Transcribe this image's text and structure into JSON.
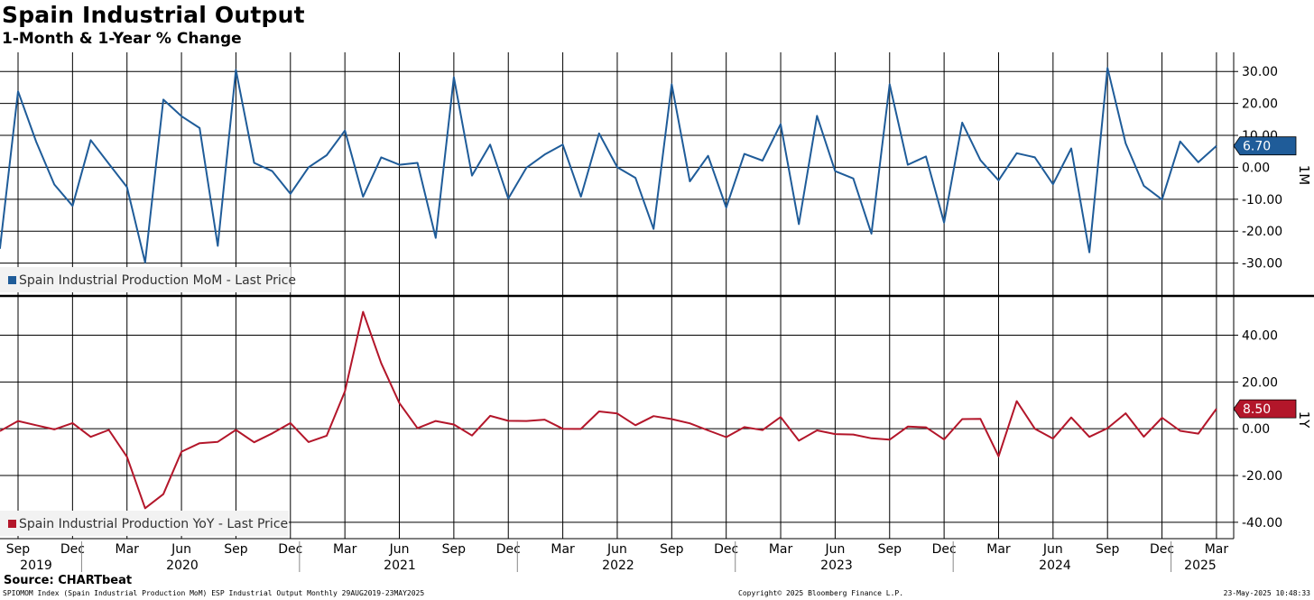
{
  "header": {
    "title": "Spain Industrial Output",
    "subtitle": "1-Month & 1-Year % Change"
  },
  "footer": {
    "source": "Source: CHARTbeat",
    "left": "SPIOMOM Index (Spain Industrial Production MoM) ESP Industrial Output  Monthly 29AUG2019-23MAY2025",
    "center": "Copyright© 2025 Bloomberg Finance L.P.",
    "right": "23-May-2025 10:48:33"
  },
  "x_axis": {
    "month_labels": [
      "Sep",
      "Dec",
      "Mar",
      "Jun",
      "Sep",
      "Dec",
      "Mar",
      "Jun",
      "Sep",
      "Dec",
      "Mar",
      "Jun",
      "Sep",
      "Dec",
      "Mar",
      "Jun",
      "Sep",
      "Dec",
      "Mar",
      "Jun",
      "Sep",
      "Dec",
      "Mar"
    ],
    "year_labels": [
      "2019",
      "2020",
      "2021",
      "2022",
      "2023",
      "2024",
      "2025"
    ]
  },
  "chart_data": [
    {
      "type": "line",
      "panel": "top",
      "side_label": "1M",
      "legend": "Spain Industrial Production MoM - Last Price",
      "color": "#1f5c99",
      "last_value_label": "6.70",
      "ylim": [
        -40,
        36
      ],
      "y_ticks": [
        30,
        20,
        10,
        0,
        -10,
        -20,
        -30
      ],
      "y_tick_labels": [
        "30.00",
        "20.00",
        "10.00",
        "0.00",
        "-10.00",
        "-20.00",
        "-30.00"
      ],
      "x_start": "2019-08",
      "x_end": "2025-03",
      "values": [
        -25.5,
        23.8,
        8,
        -5.4,
        -12.1,
        8.5,
        1.1,
        -6.2,
        -29.8,
        21.2,
        16,
        12.3,
        -24.6,
        30.5,
        1.4,
        -1.2,
        -8.3,
        0,
        3.8,
        11.5,
        -9.2,
        3.1,
        0.8,
        1.4,
        -22.1,
        28.2,
        -2.6,
        7.1,
        -9.8,
        -0.1,
        4,
        7.1,
        -9.2,
        10.6,
        0,
        -3.3,
        -19.3,
        26,
        -4.4,
        3.6,
        -12.6,
        4.2,
        2.1,
        13.5,
        -17.8,
        16.1,
        -1.2,
        -3.5,
        -20.8,
        26,
        0.8,
        3.4,
        -17.3,
        14,
        2.2,
        -4.1,
        4.4,
        3.1,
        -5.3,
        5.9,
        -26.6,
        31.1,
        7.5,
        -5.8,
        -10.1,
        8.1,
        1.6,
        6.7
      ]
    },
    {
      "type": "line",
      "panel": "bottom",
      "side_label": "1Y",
      "legend": "Spain Industrial Production YoY - Last Price",
      "color": "#b3162a",
      "last_value_label": "8.50",
      "ylim": [
        -47,
        56
      ],
      "y_ticks": [
        40,
        20,
        0,
        -20,
        -40
      ],
      "y_tick_labels": [
        "40.00",
        "20.00",
        "0.00",
        "-20.00",
        "-40.00"
      ],
      "x_start": "2019-08",
      "x_end": "2025-03",
      "values": [
        -1,
        3.3,
        1.5,
        -0.3,
        2.4,
        -3.5,
        -0.5,
        -12,
        -34,
        -28,
        -9.8,
        -6.2,
        -5.6,
        -0.5,
        -5.8,
        -2,
        2.4,
        -5.7,
        -3,
        16,
        50,
        28,
        11,
        0.2,
        3.3,
        1.8,
        -2.9,
        5.5,
        3.4,
        3.3,
        3.9,
        0,
        -0.1,
        7.4,
        6.5,
        1.5,
        5.4,
        4.1,
        2.3,
        -0.7,
        -3.6,
        0.7,
        -0.6,
        5,
        -5.1,
        -0.7,
        -2.3,
        -2.5,
        -4.1,
        -4.7,
        0.9,
        0.6,
        -4.6,
        4.1,
        4.2,
        -11.8,
        11.8,
        0,
        -4.2,
        4.8,
        -3.5,
        0.2,
        6.6,
        -3.4,
        4.7,
        -0.9,
        -2.1,
        8.5
      ]
    }
  ]
}
